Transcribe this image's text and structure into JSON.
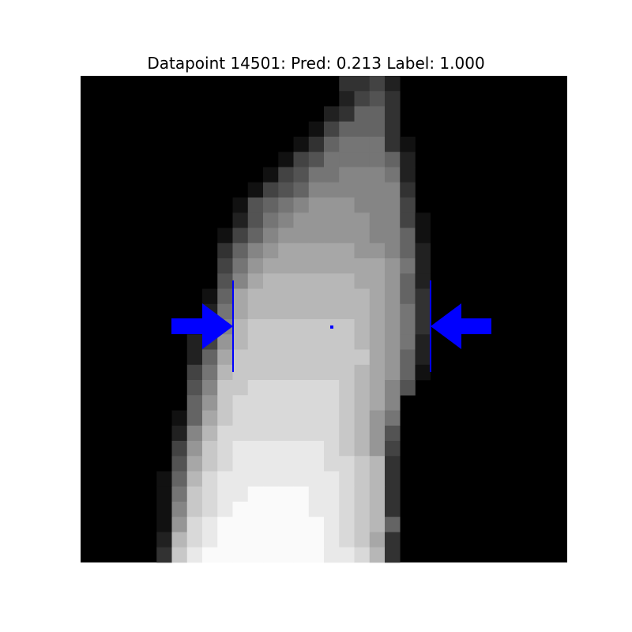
{
  "figure": {
    "title": "Datapoint 14501: Pred: 0.213 Label: 1.000"
  },
  "colors": {
    "background": "#ffffff",
    "image_background": "#000000",
    "annotation": "#0000ff"
  },
  "image": {
    "description_icon": "grayscale-pixel-image",
    "grid_size": 32,
    "rows": [
      "00000000000000000334200000000000",
      "00000000000000000245300000000000",
      "00000000000000002366300000000000",
      "00000000000000014666300000000000",
      "00000000000000136777310000000000",
      "00000000000001457777620000000000",
      "00000000000014577888720000000000",
      "00000000000145688888830000000000",
      "00000000001567899988840000000000",
      "00000000002578999998841000000000",
      "00000000014689999998861000000000",
      "0000000003689AAAAA99862000000000",
      "000000000479AAAAAAAA972000000000",
      "00000000058ABBBBBBAA962000000000",
      "0000000016ABBBBBBBBA963000000000",
      "0000000027ABBBBBBBBA973000000000",
      "0000000038BCCCCCCCBA973000000000",
      "0000000249BCCCCCCCBA972000000000",
      "000000026ACCCCCCCCCA962000000000",
      "000000047BCCCCCCCCBA961000000000",
      "000000058CCDDDDDDCBA850000000000",
      "000000069CDDDDDDDCBA800000000000",
      "00000016ACDDDDDDDCB9700000000000",
      "00000028BDDDDDDDDCB9500000000000",
      "00000049CDEEEEEEDCB9400000000000",
      "0000005ACDEEEEEEDDCB300000000000",
      "0000016BDEEEEEEEEDCB300000000000",
      "0000017CDEEFFFFEEDCB300000000000",
      "0000018CDEFFFFFEEDCB300000000000",
      "0000019DEFFFFFFFEDCB600000000000",
      "000002BDEFFFFFFFEDCA300000000000",
      "000003CEFFFFFFFFEEDB300000000000"
    ]
  }
}
